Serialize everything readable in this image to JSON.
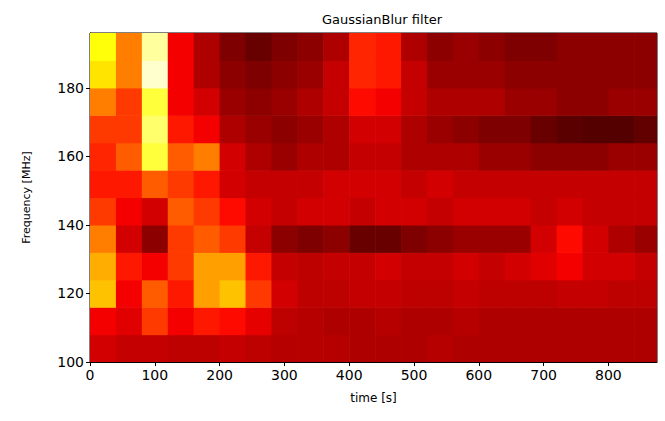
{
  "chart_data": {
    "type": "heatmap",
    "title": "GaussianBlur filter",
    "x_label": "time [s]",
    "y_label": "Frequency [MHz]",
    "xlim": [
      0,
      875
    ],
    "ylim": [
      100,
      196
    ],
    "xticks": [
      0,
      100,
      200,
      300,
      400,
      500,
      600,
      700,
      800
    ],
    "yticks": [
      100,
      120,
      140,
      160,
      180
    ],
    "x_edges": [
      0,
      40,
      80,
      120,
      160,
      200,
      240,
      280,
      320,
      360,
      400,
      440,
      480,
      520,
      560,
      600,
      640,
      680,
      720,
      760,
      800,
      840,
      875
    ],
    "y_edges": [
      100,
      108,
      116,
      124,
      132,
      140,
      148,
      156,
      164,
      172,
      180,
      188,
      196
    ],
    "cells": [
      [
        0.3,
        0.28,
        0.28,
        0.27,
        0.27,
        0.28,
        0.27,
        0.26,
        0.26,
        0.26,
        0.25,
        0.25,
        0.25,
        0.26,
        0.25,
        0.25,
        0.25,
        0.25,
        0.25,
        0.25,
        0.25,
        0.25
      ],
      [
        0.35,
        0.32,
        0.45,
        0.35,
        0.4,
        0.38,
        0.33,
        0.27,
        0.26,
        0.25,
        0.25,
        0.26,
        0.25,
        0.25,
        0.26,
        0.25,
        0.25,
        0.25,
        0.25,
        0.25,
        0.25,
        0.25
      ],
      [
        0.65,
        0.35,
        0.5,
        0.4,
        0.6,
        0.65,
        0.45,
        0.3,
        0.27,
        0.27,
        0.28,
        0.28,
        0.27,
        0.27,
        0.28,
        0.27,
        0.27,
        0.27,
        0.28,
        0.28,
        0.27,
        0.27
      ],
      [
        0.62,
        0.4,
        0.35,
        0.45,
        0.6,
        0.6,
        0.4,
        0.28,
        0.27,
        0.28,
        0.28,
        0.3,
        0.28,
        0.28,
        0.3,
        0.28,
        0.3,
        0.32,
        0.35,
        0.3,
        0.3,
        0.28
      ],
      [
        0.55,
        0.3,
        0.2,
        0.45,
        0.5,
        0.45,
        0.28,
        0.2,
        0.18,
        0.2,
        0.15,
        0.15,
        0.18,
        0.2,
        0.22,
        0.22,
        0.22,
        0.3,
        0.38,
        0.3,
        0.25,
        0.22
      ],
      [
        0.45,
        0.35,
        0.3,
        0.5,
        0.45,
        0.38,
        0.3,
        0.28,
        0.3,
        0.3,
        0.28,
        0.3,
        0.3,
        0.28,
        0.3,
        0.3,
        0.3,
        0.28,
        0.3,
        0.28,
        0.28,
        0.28
      ],
      [
        0.4,
        0.4,
        0.5,
        0.45,
        0.4,
        0.3,
        0.28,
        0.28,
        0.28,
        0.3,
        0.3,
        0.3,
        0.28,
        0.3,
        0.28,
        0.28,
        0.28,
        0.28,
        0.28,
        0.28,
        0.28,
        0.28
      ],
      [
        0.42,
        0.5,
        0.8,
        0.5,
        0.55,
        0.3,
        0.25,
        0.22,
        0.25,
        0.25,
        0.28,
        0.28,
        0.25,
        0.25,
        0.25,
        0.22,
        0.22,
        0.2,
        0.2,
        0.2,
        0.22,
        0.22
      ],
      [
        0.45,
        0.45,
        0.85,
        0.4,
        0.35,
        0.25,
        0.22,
        0.2,
        0.22,
        0.25,
        0.3,
        0.3,
        0.25,
        0.22,
        0.2,
        0.18,
        0.18,
        0.15,
        0.13,
        0.12,
        0.12,
        0.14
      ],
      [
        0.55,
        0.45,
        0.8,
        0.35,
        0.3,
        0.22,
        0.2,
        0.22,
        0.25,
        0.28,
        0.38,
        0.35,
        0.28,
        0.25,
        0.25,
        0.25,
        0.22,
        0.22,
        0.2,
        0.2,
        0.22,
        0.22
      ],
      [
        0.7,
        0.55,
        0.95,
        0.35,
        0.25,
        0.2,
        0.18,
        0.2,
        0.22,
        0.28,
        0.42,
        0.4,
        0.28,
        0.22,
        0.22,
        0.22,
        0.2,
        0.2,
        0.2,
        0.2,
        0.2,
        0.2
      ],
      [
        0.75,
        0.55,
        0.9,
        0.35,
        0.25,
        0.18,
        0.15,
        0.18,
        0.2,
        0.25,
        0.42,
        0.4,
        0.25,
        0.2,
        0.22,
        0.2,
        0.18,
        0.18,
        0.2,
        0.2,
        0.2,
        0.2
      ]
    ]
  }
}
